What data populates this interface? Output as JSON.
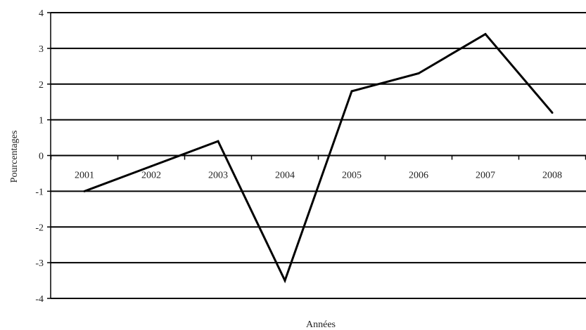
{
  "chart_data": {
    "type": "line",
    "categories": [
      "2001",
      "2002",
      "2003",
      "2004",
      "2005",
      "2006",
      "2007",
      "2008"
    ],
    "series": [
      {
        "values": [
          -1.0,
          -0.3,
          0.4,
          -3.5,
          1.8,
          2.3,
          3.4,
          1.2
        ]
      }
    ],
    "xlabel": "Années",
    "ylabel": "Pourcentages",
    "ylim": [
      -4,
      4
    ],
    "yticks": [
      "4",
      "3",
      "2",
      "1",
      "0",
      "-1",
      "-2",
      "-3",
      "-4"
    ],
    "grid": true,
    "line_color": "#000000",
    "grid_color": "#000000"
  }
}
